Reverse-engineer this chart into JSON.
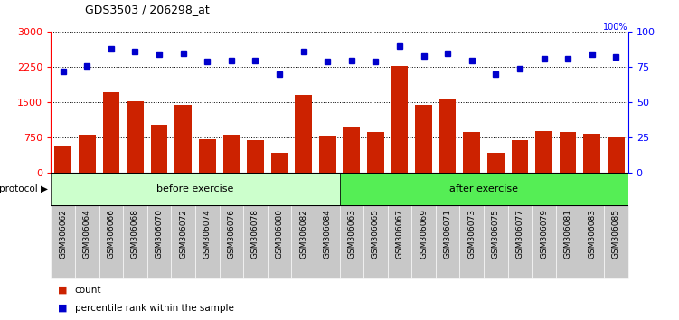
{
  "title": "GDS3503 / 206298_at",
  "categories": [
    "GSM306062",
    "GSM306064",
    "GSM306066",
    "GSM306068",
    "GSM306070",
    "GSM306072",
    "GSM306074",
    "GSM306076",
    "GSM306078",
    "GSM306080",
    "GSM306082",
    "GSM306084",
    "GSM306063",
    "GSM306065",
    "GSM306067",
    "GSM306069",
    "GSM306071",
    "GSM306073",
    "GSM306075",
    "GSM306077",
    "GSM306079",
    "GSM306081",
    "GSM306083",
    "GSM306085"
  ],
  "counts": [
    580,
    820,
    1720,
    1530,
    1020,
    1440,
    720,
    820,
    700,
    430,
    1650,
    800,
    980,
    870,
    2280,
    1440,
    1580,
    870,
    430,
    700,
    880,
    870,
    830,
    760
  ],
  "percentile": [
    72,
    76,
    88,
    86,
    84,
    85,
    79,
    80,
    80,
    70,
    86,
    79,
    80,
    79,
    90,
    83,
    85,
    80,
    70,
    74,
    81,
    81,
    84,
    82
  ],
  "bar_color": "#cc2200",
  "dot_color": "#0000cc",
  "left_yticks": [
    0,
    750,
    1500,
    2250,
    3000
  ],
  "right_yticks": [
    0,
    25,
    50,
    75,
    100
  ],
  "ylim_left": [
    0,
    3000
  ],
  "ylim_right": [
    0,
    100
  ],
  "before_count": 12,
  "after_count": 12,
  "before_label": "before exercise",
  "after_label": "after exercise",
  "protocol_label": "protocol",
  "before_color": "#ccffcc",
  "after_color": "#55ee55",
  "legend_count_label": "count",
  "legend_pct_label": "percentile rank within the sample",
  "tick_area_color": "#c8c8c8"
}
